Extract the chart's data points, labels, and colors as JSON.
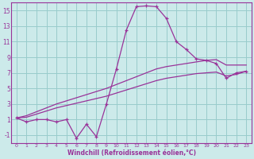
{
  "xlabel": "Windchill (Refroidissement éolien,°C)",
  "bg_color": "#cceaea",
  "line_color": "#993399",
  "grid_color": "#99cccc",
  "x": [
    0,
    1,
    2,
    3,
    4,
    5,
    6,
    7,
    8,
    9,
    10,
    11,
    12,
    13,
    14,
    15,
    16,
    17,
    18,
    19,
    20,
    21,
    22,
    23
  ],
  "y_main": [
    1.2,
    0.7,
    1.0,
    1.0,
    0.7,
    1.0,
    -1.4,
    0.4,
    -1.2,
    3.0,
    7.5,
    12.5,
    15.5,
    15.6,
    15.5,
    14.0,
    11.0,
    10.0,
    8.8,
    8.6,
    8.2,
    6.3,
    7.0,
    7.2
  ],
  "y_upper": [
    1.2,
    1.5,
    2.0,
    2.5,
    3.0,
    3.4,
    3.8,
    4.2,
    4.6,
    5.0,
    5.5,
    6.0,
    6.5,
    7.0,
    7.5,
    7.8,
    8.0,
    8.2,
    8.4,
    8.6,
    8.7,
    8.0,
    8.0,
    8.0
  ],
  "y_lower": [
    1.2,
    1.3,
    1.7,
    2.1,
    2.5,
    2.8,
    3.1,
    3.4,
    3.7,
    4.0,
    4.4,
    4.8,
    5.2,
    5.6,
    6.0,
    6.3,
    6.5,
    6.7,
    6.9,
    7.0,
    7.1,
    6.6,
    6.8,
    7.2
  ],
  "ylim": [
    -2,
    16
  ],
  "xlim": [
    -0.5,
    23.5
  ],
  "yticks": [
    -1,
    1,
    3,
    5,
    7,
    9,
    11,
    13,
    15
  ],
  "xticks": [
    0,
    1,
    2,
    3,
    4,
    5,
    6,
    7,
    8,
    9,
    10,
    11,
    12,
    13,
    14,
    15,
    16,
    17,
    18,
    19,
    20,
    21,
    22,
    23
  ],
  "xlabel_fontsize": 5.5,
  "tick_fontsize_x": 4.5,
  "tick_fontsize_y": 5.5
}
